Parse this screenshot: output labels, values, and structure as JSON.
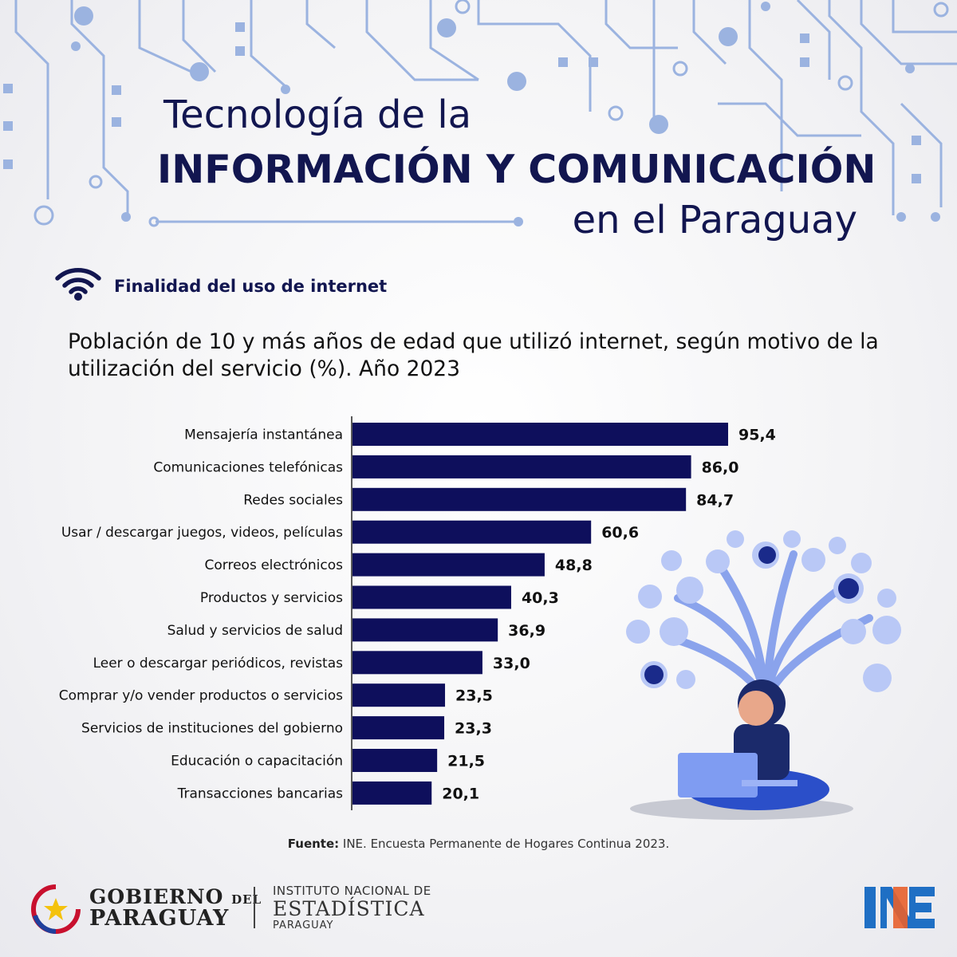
{
  "header": {
    "title_line1": "Tecnología de la",
    "title_line2": "INFORMACIÓN  Y COMUNICACIÓN",
    "title_line3": "en el Paraguay"
  },
  "section": {
    "icon": "wifi-icon",
    "label": "Finalidad del uso de internet"
  },
  "colors": {
    "bar": "#0e0f5c",
    "title": "#121650",
    "circuit": "#9bb3e0"
  },
  "chart_data": {
    "type": "bar",
    "orientation": "horizontal",
    "title": "Población de 10 y más años de edad que utilizó internet, según motivo de la utilización del servicio (%). Año 2023",
    "categories": [
      "Mensajería instantánea",
      "Comunicaciones telefónicas",
      "Redes sociales",
      "Usar / descargar juegos, videos, películas",
      "Correos electrónicos",
      "Productos y servicios",
      "Salud y servicios de salud",
      "Leer o descargar periódicos, revistas",
      "Comprar y/o vender productos o servicios",
      "Servicios de instituciones del gobierno",
      "Educación o capacitación",
      "Transacciones bancarias"
    ],
    "values": [
      95.4,
      86.0,
      84.7,
      60.6,
      48.8,
      40.3,
      36.9,
      33.0,
      23.5,
      23.3,
      21.5,
      20.1
    ],
    "value_labels": [
      "95,4",
      "86,0",
      "84,7",
      "60,6",
      "48,8",
      "40,3",
      "36,9",
      "33,0",
      "23,5",
      "23,3",
      "21,5",
      "20,1"
    ],
    "xlim": [
      0,
      100
    ],
    "grid": false,
    "legend": "none"
  },
  "source": {
    "label": "Fuente:",
    "text": " INE. Encuesta Permanente de Hogares Continua 2023."
  },
  "footer": {
    "gov_line1_a": "GOBIERNO ",
    "gov_line1_b": "DEL",
    "gov_line2": "PARAGUAY",
    "ine_line1": "INSTITUTO NACIONAL DE",
    "ine_line2": "ESTADÍSTICA",
    "ine_line3": "PARAGUAY"
  }
}
